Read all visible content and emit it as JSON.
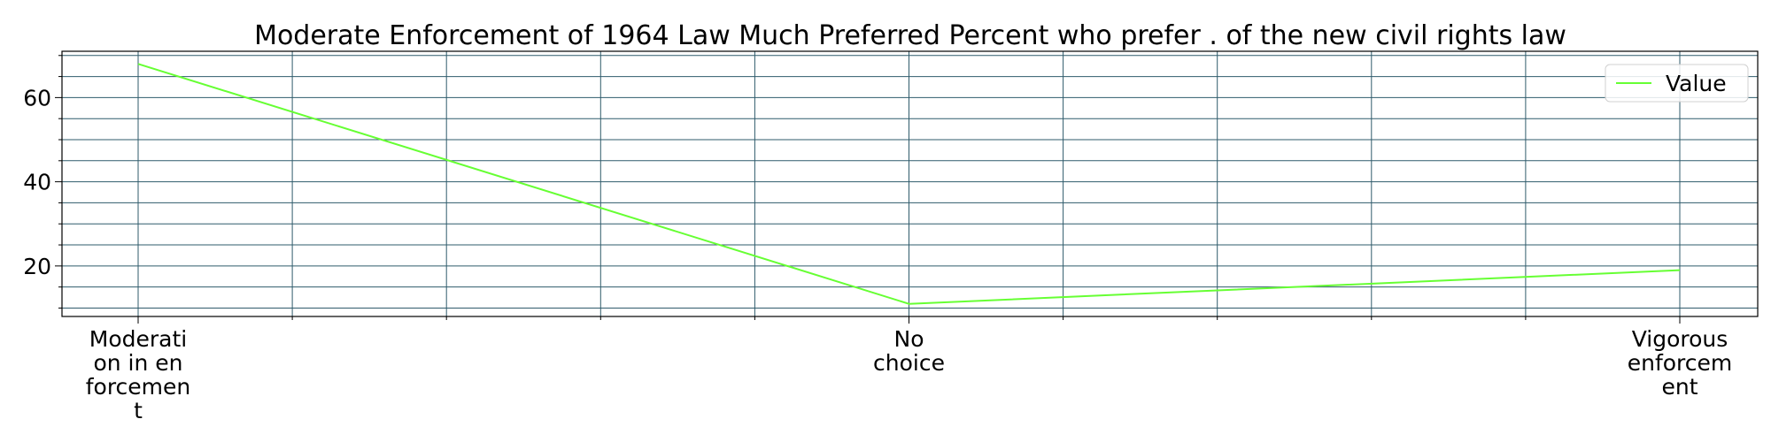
{
  "chart_data": {
    "type": "line",
    "title": "Moderate Enforcement of 1964 Law Much Preferred Percent who prefer . of the new civil rights law",
    "xlabel": "",
    "ylabel": "",
    "categories": [
      [
        "Moderati",
        "on in en",
        "forcemen",
        "t"
      ],
      [
        "No",
        "choice"
      ],
      [
        "Vigorous",
        "enforcem",
        "ent"
      ]
    ],
    "series": [
      {
        "name": "Value",
        "values": [
          68,
          11,
          19
        ],
        "color": "#66ff33"
      }
    ],
    "ylim": [
      8,
      71
    ],
    "yticks": [
      20,
      40,
      60
    ],
    "grid": true,
    "grid_color": "#2f5b6b",
    "legend_position": "top-right"
  }
}
